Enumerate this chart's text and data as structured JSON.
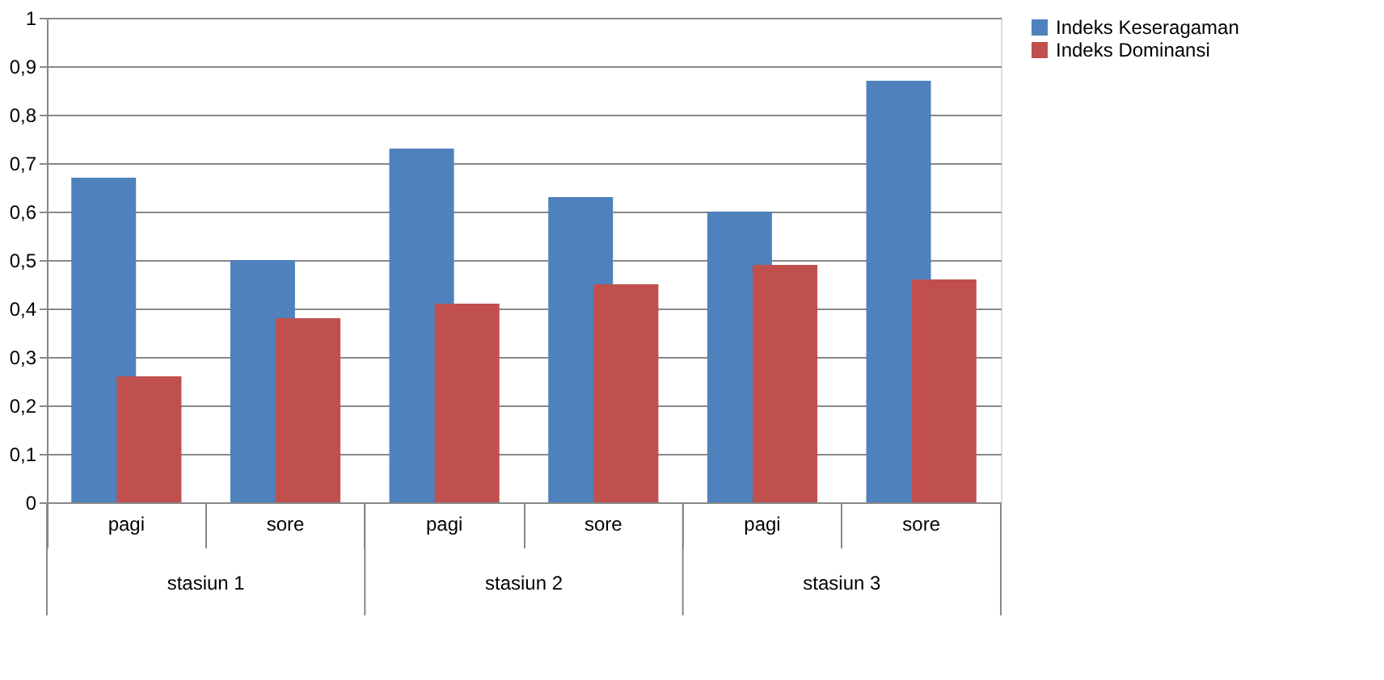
{
  "chart_data": {
    "type": "bar",
    "categories": [
      "pagi",
      "sore",
      "pagi",
      "sore",
      "pagi",
      "sore"
    ],
    "series": [
      {
        "name": "Indeks Keseragaman",
        "color": "#4f81bd",
        "values": [
          0.67,
          0.5,
          0.73,
          0.63,
          0.6,
          0.87
        ]
      },
      {
        "name": "Indeks Dominansi",
        "color": "#c0504d",
        "values": [
          0.26,
          0.38,
          0.41,
          0.45,
          0.49,
          0.46
        ]
      }
    ],
    "annotations": [
      "stasiun 1",
      "stasiun 2",
      "stasiun 3"
    ],
    "ylim": [
      0,
      1
    ],
    "yticks": [
      0,
      {
        "value": 0.1,
        "label": "0,1"
      },
      {
        "value": 0.2,
        "label": "0,2"
      },
      {
        "value": 0.3,
        "label": "0,3"
      },
      {
        "value": 0.4,
        "label": "0,4"
      },
      {
        "value": 0.5,
        "label": "0,5"
      },
      {
        "value": 0.6,
        "label": "0,6"
      },
      {
        "value": 0.7,
        "label": "0,7"
      },
      {
        "value": 0.8,
        "label": "0,8"
      },
      {
        "value": 0.9,
        "label": "0,9"
      },
      1
    ],
    "grid": "y",
    "legend": "right"
  }
}
